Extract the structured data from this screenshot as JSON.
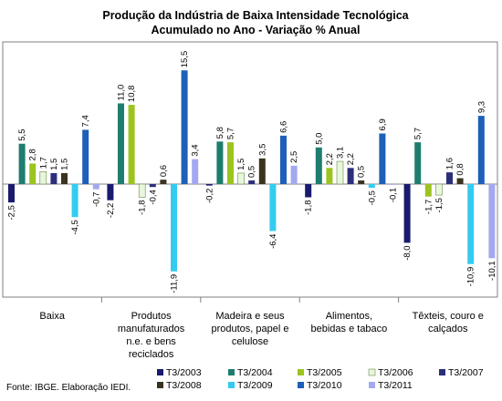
{
  "chart_data": {
    "type": "bar",
    "title": "Produção da Indústria de Baixa Intensidade Tecnológica",
    "subtitle": "Acumulado no Ano - Variação % Anual",
    "categories": [
      [
        "Baixa"
      ],
      [
        "Produtos",
        "manufaturados",
        "n.e. e bens",
        "reciclados"
      ],
      [
        "Madeira e seus",
        "produtos, papel e",
        "celulose"
      ],
      [
        "Alimentos,",
        "bebidas e tabaco"
      ],
      [
        "Têxteis, couro e",
        "calçados"
      ]
    ],
    "series": [
      {
        "name": "T3/2003",
        "color": "#1a1a6e",
        "values": [
          -2.5,
          -2.2,
          -0.2,
          -1.8,
          -8.0
        ]
      },
      {
        "name": "T3/2004",
        "color": "#1e7d6e",
        "values": [
          5.5,
          11.0,
          5.8,
          5.0,
          5.7
        ]
      },
      {
        "name": "T3/2005",
        "color": "#9cc41e",
        "values": [
          2.8,
          10.8,
          5.7,
          2.2,
          -1.7
        ]
      },
      {
        "name": "T3/2006",
        "color": "#e8f6dc",
        "values": [
          1.7,
          -1.8,
          1.5,
          3.1,
          -1.5
        ]
      },
      {
        "name": "T3/2007",
        "color": "#2b2f7a",
        "values": [
          1.5,
          -0.4,
          0.5,
          2.2,
          1.6
        ]
      },
      {
        "name": "T3/2008",
        "color": "#3a3320",
        "values": [
          1.5,
          0.6,
          3.5,
          0.5,
          0.8
        ]
      },
      {
        "name": "T3/2009",
        "color": "#33ccf0",
        "values": [
          -4.5,
          -11.9,
          -6.4,
          -0.5,
          -10.9
        ]
      },
      {
        "name": "T3/2010",
        "color": "#1e5fb8",
        "values": [
          7.4,
          15.5,
          6.6,
          6.9,
          9.3
        ]
      },
      {
        "name": "T3/2011",
        "color": "#a3a8f0",
        "values": [
          -0.7,
          3.4,
          2.5,
          -0.1,
          -10.1
        ]
      }
    ],
    "value_labels": [
      [
        "-2,5",
        "5,5",
        "2,8",
        "1,7",
        "1,5",
        "1,5",
        "-4,5",
        "7,4",
        "-0,7"
      ],
      [
        "-2,2",
        "11,0",
        "10,8",
        "-1,8",
        "-0,4",
        "0,6",
        "-11,9",
        "15,5",
        "3,4"
      ],
      [
        "-0,2",
        "5,8",
        "5,7",
        "1,5",
        "0,5",
        "3,5",
        "-6,4",
        "6,6",
        "2,5"
      ],
      [
        "-1,8",
        "5,0",
        "2,2",
        "3,1",
        "2,2",
        "0,5",
        "-0,5",
        "6,9",
        "-0,1"
      ],
      [
        "-8,0",
        "5,7",
        "-1,7",
        "-1,5",
        "1,6",
        "0,8",
        "-10,9",
        "9,3",
        "-10,1"
      ]
    ],
    "ylim": [
      -15,
      18.5
    ],
    "grid": false,
    "legend_position": "bottom",
    "source": "Fonte: IBGE. Elaboração IEDI."
  }
}
